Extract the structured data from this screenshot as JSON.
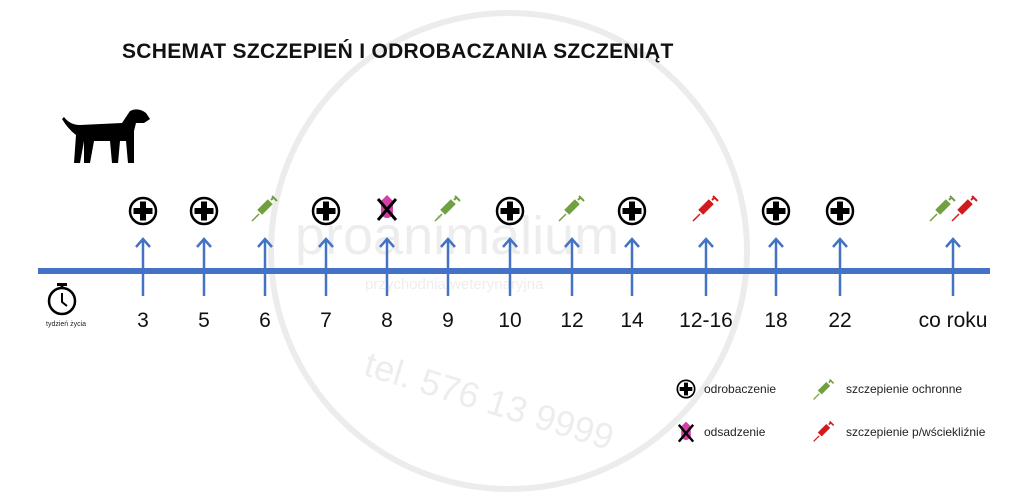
{
  "title": "SCHEMAT SZCZEPIEŃ I ODROBACZANIA SZCZENIĄT",
  "axis_caption": "tydzień życia",
  "colors": {
    "axis": "#4472c4",
    "vaccine": "#70a040",
    "rabies": "#d01c1c",
    "weaning": "#d63fa8",
    "deworm": "#000000"
  },
  "events": [
    {
      "week": "3",
      "icons": [
        "deworm"
      ]
    },
    {
      "week": "5",
      "icons": [
        "deworm"
      ]
    },
    {
      "week": "6",
      "icons": [
        "vaccine"
      ]
    },
    {
      "week": "7",
      "icons": [
        "deworm"
      ]
    },
    {
      "week": "8",
      "icons": [
        "weaning"
      ]
    },
    {
      "week": "9",
      "icons": [
        "vaccine"
      ]
    },
    {
      "week": "10",
      "icons": [
        "deworm"
      ]
    },
    {
      "week": "12",
      "icons": [
        "vaccine"
      ]
    },
    {
      "week": "14",
      "icons": [
        "deworm"
      ]
    },
    {
      "week": "12-16",
      "icons": [
        "rabies"
      ]
    },
    {
      "week": "18",
      "icons": [
        "deworm"
      ]
    },
    {
      "week": "22",
      "icons": [
        "deworm"
      ]
    },
    {
      "week": "co roku",
      "icons": [
        "vaccine",
        "rabies"
      ]
    }
  ],
  "legend": {
    "deworm": "odrobaczenie",
    "vaccine": "szczepienie ochronne",
    "weaning": "odsadzenie",
    "rabies": "szczepienie p/wściekliźnie"
  },
  "watermark": {
    "brand": "proanimalium",
    "subtitle": "przychodnia weterynaryjna",
    "phone": "tel. 576 13 9999"
  }
}
